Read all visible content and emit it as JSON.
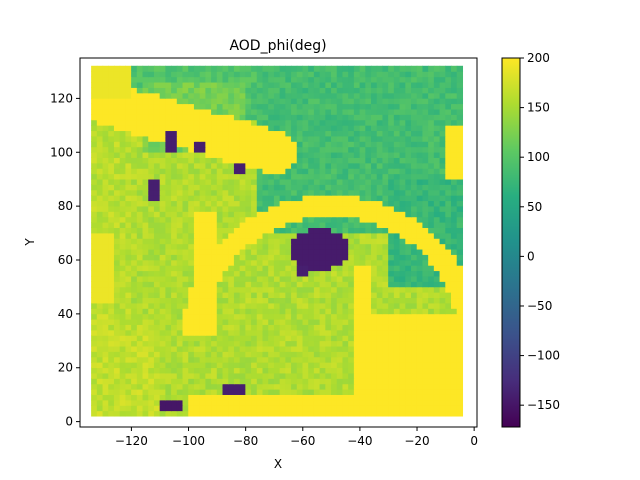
{
  "chart_data": {
    "type": "heatmap",
    "title": "AOD_phi(deg)",
    "xlabel": "X",
    "ylabel": "Y",
    "xlim": [
      -138,
      1
    ],
    "ylim": [
      -2,
      135
    ],
    "x_ticks": [
      -120,
      -100,
      -80,
      -60,
      -40,
      -20,
      0
    ],
    "x_tick_labels": [
      "−120",
      "−100",
      "−80",
      "−60",
      "−40",
      "−20",
      "0"
    ],
    "y_ticks": [
      0,
      20,
      40,
      60,
      80,
      100,
      120
    ],
    "y_tick_labels": [
      "0",
      "20",
      "40",
      "60",
      "80",
      "100",
      "120"
    ],
    "colormap": "viridis",
    "colorbar": {
      "range": [
        -172,
        200
      ],
      "ticks": [
        200,
        150,
        100,
        50,
        0,
        -50,
        -100,
        -150
      ],
      "tick_labels": [
        "200",
        "150",
        "100",
        "50",
        "0",
        "−50",
        "−100",
        "−150"
      ]
    },
    "grid_extent": {
      "x": [
        -133,
        -5
      ],
      "y": [
        3,
        131
      ]
    },
    "regions": [
      {
        "shape": "background",
        "value": 155
      },
      {
        "shape": "rect",
        "x": [
          -133,
          -5
        ],
        "y": [
          112,
          131
        ],
        "value": 95
      },
      {
        "shape": "rect",
        "x": [
          -75,
          -5
        ],
        "y": [
          70,
          131
        ],
        "value": 85
      },
      {
        "shape": "rect",
        "x": [
          -30,
          -5
        ],
        "y": [
          50,
          90
        ],
        "value": 75
      },
      {
        "shape": "rect",
        "x": [
          -115,
          -80
        ],
        "y": [
          100,
          126
        ],
        "value": 120
      },
      {
        "shape": "rect",
        "x": [
          -133,
          -120
        ],
        "y": [
          3,
          131
        ],
        "value": 160
      },
      {
        "shape": "rect",
        "x": [
          -133,
          -110
        ],
        "y": [
          3,
          40
        ],
        "value": 165
      },
      {
        "shape": "arc",
        "cx": -50,
        "cy": 32,
        "r_inner": 44,
        "r_outer": 52,
        "value": 200
      },
      {
        "shape": "rect",
        "x": [
          -98,
          -90
        ],
        "y": [
          32,
          78
        ],
        "value": 200
      },
      {
        "shape": "rect",
        "x": [
          -42,
          -5
        ],
        "y": [
          3,
          40
        ],
        "value": 200
      },
      {
        "shape": "rect",
        "x": [
          -100,
          -5
        ],
        "y": [
          3,
          9
        ],
        "value": 200
      },
      {
        "shape": "rect",
        "x": [
          -42,
          -36
        ],
        "y": [
          3,
          58
        ],
        "value": 200
      },
      {
        "shape": "band",
        "from": [
          -128,
          118
        ],
        "to": [
          -70,
          100
        ],
        "half_width": 8,
        "value": 200
      },
      {
        "shape": "rect",
        "x": [
          -133,
          -120
        ],
        "y": [
          120,
          131
        ],
        "value": 190
      },
      {
        "shape": "rect",
        "x": [
          -10,
          -5
        ],
        "y": [
          90,
          110
        ],
        "value": 200
      },
      {
        "shape": "rect",
        "x": [
          -133,
          -126
        ],
        "y": [
          44,
          70
        ],
        "value": 190
      },
      {
        "shape": "ellipse",
        "cx": -54,
        "cy": 64,
        "rx": 10,
        "ry": 8,
        "value": -145
      },
      {
        "shape": "ellipse",
        "cx": -106,
        "cy": 6,
        "rx": 5,
        "ry": 3,
        "value": -150
      },
      {
        "shape": "ellipse",
        "cx": -84,
        "cy": 12,
        "rx": 4,
        "ry": 2,
        "value": -140
      },
      {
        "shape": "ellipse",
        "cx": -112,
        "cy": 86,
        "rx": 2,
        "ry": 5,
        "value": -140
      },
      {
        "shape": "ellipse",
        "cx": -106,
        "cy": 104,
        "rx": 2,
        "ry": 4,
        "value": -140
      },
      {
        "shape": "ellipse",
        "cx": -82,
        "cy": 94,
        "rx": 3,
        "ry": 2,
        "value": -140
      },
      {
        "shape": "ellipse",
        "cx": -96,
        "cy": 102,
        "rx": 3,
        "ry": 1.5,
        "value": -140
      },
      {
        "shape": "ellipse",
        "cx": -60,
        "cy": 56,
        "rx": 3,
        "ry": 2,
        "value": -140
      }
    ]
  }
}
